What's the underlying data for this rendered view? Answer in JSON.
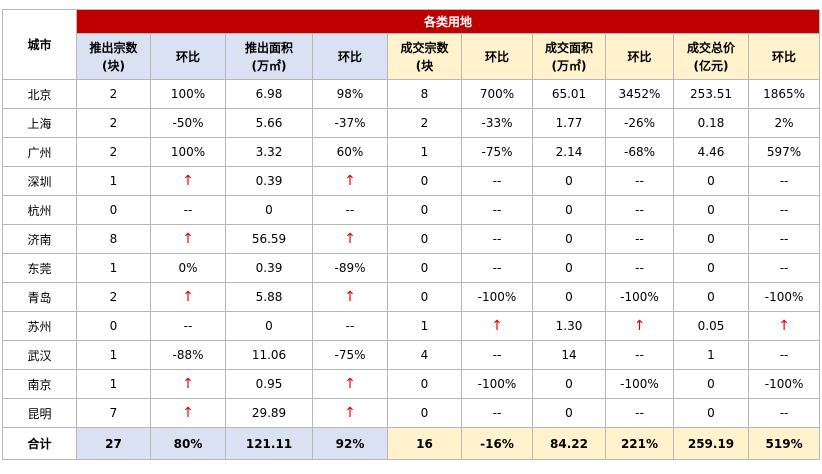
{
  "group_title": "各类用地",
  "city_header": "城市",
  "headers": [
    "推出宗数\n(块)",
    "环比",
    "推出面积\n(万㎡)",
    "环比",
    "成交宗数\n(块",
    "环比",
    "成交面积\n(万㎡)",
    "环比",
    "成交总价\n(亿元)",
    "环比"
  ],
  "up_arrow": "↑",
  "rows": [
    {
      "city": "北京",
      "cells": [
        "2",
        "100%",
        "6.98",
        "98%",
        "8",
        "700%",
        "65.01",
        "3452%",
        "253.51",
        "1865%"
      ]
    },
    {
      "city": "上海",
      "cells": [
        "2",
        "-50%",
        "5.66",
        "-37%",
        "2",
        "-33%",
        "1.77",
        "-26%",
        "0.18",
        "2%"
      ]
    },
    {
      "city": "广州",
      "cells": [
        "2",
        "100%",
        "3.32",
        "60%",
        "1",
        "-75%",
        "2.14",
        "-68%",
        "4.46",
        "597%"
      ]
    },
    {
      "city": "深圳",
      "cells": [
        "1",
        "↑",
        "0.39",
        "↑",
        "0",
        "--",
        "0",
        "--",
        "0",
        "--"
      ]
    },
    {
      "city": "杭州",
      "cells": [
        "0",
        "--",
        "0",
        "--",
        "0",
        "--",
        "0",
        "--",
        "0",
        "--"
      ]
    },
    {
      "city": "济南",
      "cells": [
        "8",
        "↑",
        "56.59",
        "↑",
        "0",
        "--",
        "0",
        "--",
        "0",
        "--"
      ]
    },
    {
      "city": "东莞",
      "cells": [
        "1",
        "0%",
        "0.39",
        "-89%",
        "0",
        "--",
        "0",
        "--",
        "0",
        "--"
      ]
    },
    {
      "city": "青岛",
      "cells": [
        "2",
        "↑",
        "5.88",
        "↑",
        "0",
        "-100%",
        "0",
        "-100%",
        "0",
        "-100%"
      ]
    },
    {
      "city": "苏州",
      "cells": [
        "0",
        "--",
        "0",
        "--",
        "1",
        "↑",
        "1.30",
        "↑",
        "0.05",
        "↑"
      ]
    },
    {
      "city": "武汉",
      "cells": [
        "1",
        "-88%",
        "11.06",
        "-75%",
        "4",
        "--",
        "14",
        "--",
        "1",
        "--"
      ]
    },
    {
      "city": "南京",
      "cells": [
        "1",
        "↑",
        "0.95",
        "↑",
        "0",
        "-100%",
        "0",
        "-100%",
        "0",
        "-100%"
      ]
    },
    {
      "city": "昆明",
      "cells": [
        "7",
        "↑",
        "29.89",
        "↑",
        "0",
        "--",
        "0",
        "--",
        "0",
        "--"
      ]
    }
  ],
  "total": {
    "city": "合计",
    "cells": [
      "27",
      "80%",
      "121.11",
      "92%",
      "16",
      "-16%",
      "84.22",
      "221%",
      "259.19",
      "519%"
    ]
  },
  "colors": {
    "group_header": "#c00000",
    "push_header": "#d9e1f2",
    "deal_header": "#fff2cc",
    "up_arrow": "#e60000"
  }
}
